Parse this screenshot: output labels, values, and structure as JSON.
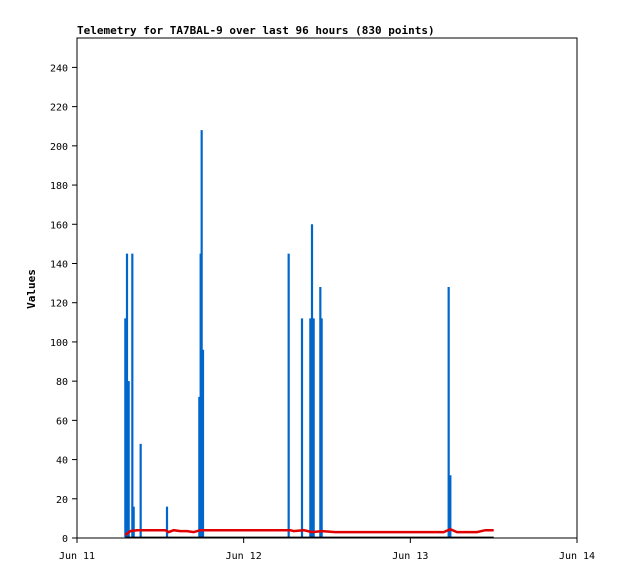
{
  "chart_data": {
    "type": "bar",
    "title": "Telemetry for TA7BAL-9 over last 96 hours (830 points)",
    "xlabel": "",
    "ylabel": "Values",
    "ylim": [
      0,
      255
    ],
    "yticks": [
      0,
      20,
      40,
      60,
      80,
      100,
      120,
      140,
      160,
      180,
      200,
      220,
      240
    ],
    "xlim": [
      "Jun 11",
      "Jun 14"
    ],
    "xticks": [
      "Jun 11",
      "Jun 12",
      "Jun 13",
      "Jun 14"
    ],
    "grid": false,
    "legend": "none",
    "colors": {
      "bars": "#0066cc",
      "line": "#e00000",
      "baseline": "#000000"
    },
    "series": [
      {
        "kind": "spikes",
        "points": [
          {
            "x": 0.29,
            "y": 112
          },
          {
            "x": 0.3,
            "y": 145
          },
          {
            "x": 0.31,
            "y": 80
          },
          {
            "x": 0.332,
            "y": 145
          },
          {
            "x": 0.34,
            "y": 16
          },
          {
            "x": 0.382,
            "y": 48
          },
          {
            "x": 0.54,
            "y": 16
          },
          {
            "x": 0.734,
            "y": 72
          },
          {
            "x": 0.742,
            "y": 145
          },
          {
            "x": 0.748,
            "y": 208
          },
          {
            "x": 0.756,
            "y": 96
          },
          {
            "x": 1.27,
            "y": 145
          },
          {
            "x": 1.35,
            "y": 112
          },
          {
            "x": 1.4,
            "y": 112
          },
          {
            "x": 1.41,
            "y": 160
          },
          {
            "x": 1.42,
            "y": 112
          },
          {
            "x": 1.46,
            "y": 128
          },
          {
            "x": 1.468,
            "y": 112
          },
          {
            "x": 2.23,
            "y": 128
          },
          {
            "x": 2.24,
            "y": 32
          }
        ]
      },
      {
        "kind": "line",
        "points": [
          {
            "x": 0.29,
            "y": 1.5
          },
          {
            "x": 0.32,
            "y": 3.5
          },
          {
            "x": 0.36,
            "y": 4
          },
          {
            "x": 0.42,
            "y": 4
          },
          {
            "x": 0.48,
            "y": 4
          },
          {
            "x": 0.53,
            "y": 4
          },
          {
            "x": 0.55,
            "y": 3
          },
          {
            "x": 0.58,
            "y": 4
          },
          {
            "x": 0.62,
            "y": 3.5
          },
          {
            "x": 0.66,
            "y": 3.5
          },
          {
            "x": 0.7,
            "y": 3
          },
          {
            "x": 0.74,
            "y": 4
          },
          {
            "x": 0.8,
            "y": 4
          },
          {
            "x": 1.0,
            "y": 4
          },
          {
            "x": 1.28,
            "y": 4
          },
          {
            "x": 1.3,
            "y": 3.5
          },
          {
            "x": 1.36,
            "y": 4
          },
          {
            "x": 1.41,
            "y": 3
          },
          {
            "x": 1.47,
            "y": 3.5
          },
          {
            "x": 1.55,
            "y": 3
          },
          {
            "x": 1.8,
            "y": 3
          },
          {
            "x": 2.2,
            "y": 3
          },
          {
            "x": 2.24,
            "y": 4.5
          },
          {
            "x": 2.28,
            "y": 3
          },
          {
            "x": 2.4,
            "y": 3
          },
          {
            "x": 2.45,
            "y": 4
          },
          {
            "x": 2.5,
            "y": 4
          }
        ]
      },
      {
        "kind": "line",
        "points": [
          {
            "x": 0.29,
            "y": 0.3
          },
          {
            "x": 2.5,
            "y": 0.3
          }
        ]
      }
    ]
  }
}
